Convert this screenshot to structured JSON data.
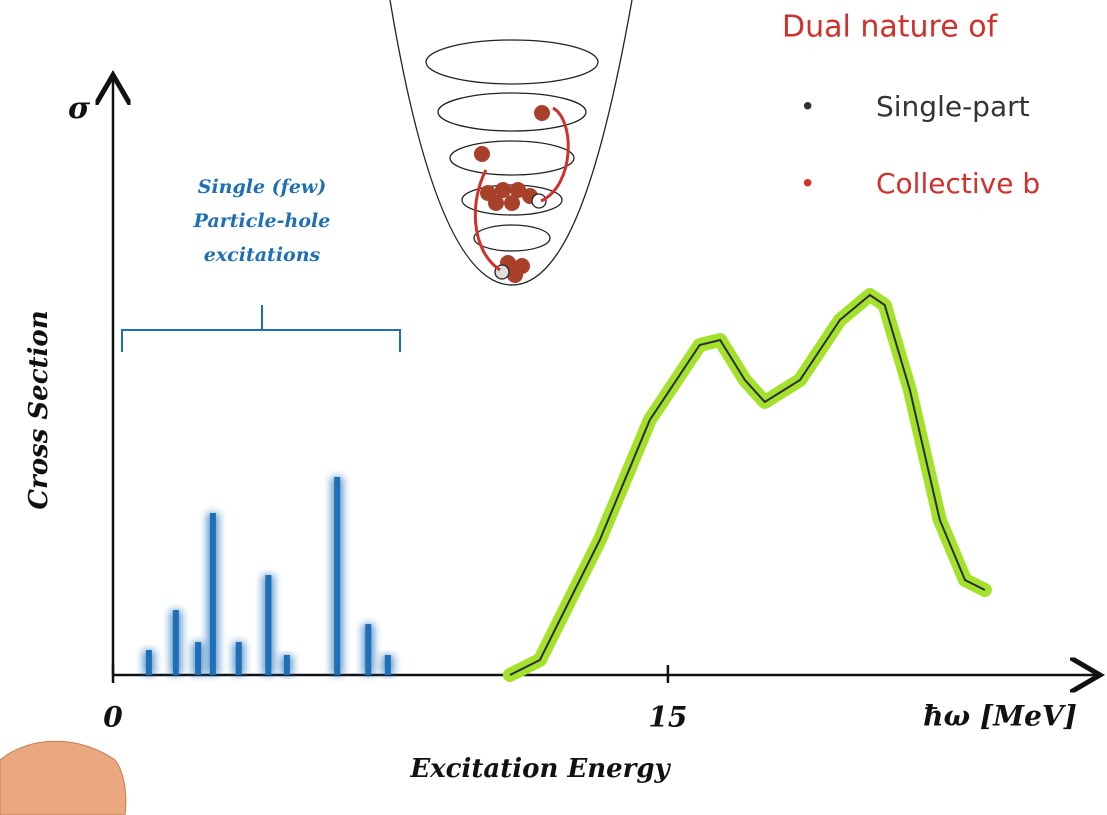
{
  "chart_data": {
    "type": "bar",
    "x": [
      0.97,
      1.7,
      2.3,
      2.7,
      3.4,
      4.2,
      4.7,
      6.06,
      6.9,
      7.43
    ],
    "values": [
      25,
      65,
      33,
      162,
      33,
      100,
      20,
      198,
      51,
      20
    ],
    "color": "#1f6fb8",
    "curve": {
      "type": "line",
      "x": [
        10.73,
        11.54,
        13.16,
        14.51,
        15.86,
        16.41,
        17.08,
        17.62,
        18.57,
        19.65,
        20.46,
        20.86,
        21.54,
        22.35,
        23.03,
        23.57
      ],
      "values": [
        0,
        15,
        135,
        255,
        330,
        335,
        295,
        273,
        295,
        355,
        380,
        370,
        285,
        155,
        95,
        85
      ],
      "color": "#2b2b45",
      "highlight_color": "#a4e22a"
    },
    "xlim": [
      0,
      26.68
    ],
    "ylim": [
      0,
      600
    ],
    "xticks": [
      0,
      15
    ],
    "xlabel": "Excitation Energy",
    "ylabel": "Cross Section",
    "y_symbol": "σ",
    "x_unit_label": "ħω [MeV]",
    "annotation": [
      "Single (few)",
      "Particle-hole",
      "excitations"
    ]
  },
  "slide": {
    "title": "Dual nature of",
    "bullets": [
      "Single-part",
      "Collective b"
    ]
  }
}
